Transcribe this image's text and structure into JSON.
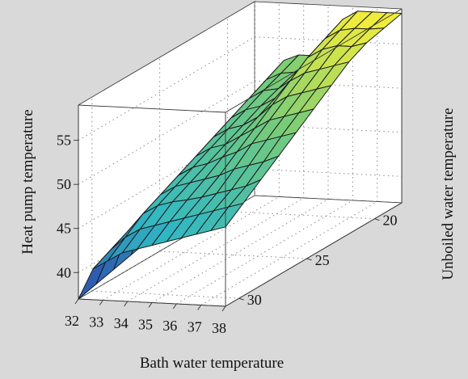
{
  "chart_data": {
    "type": "surface",
    "xlabel": "Bath water temperature",
    "ylabel": "Unboiled water temperature",
    "zlabel": "Heat pump temperature",
    "x_ticks": [
      "32",
      "33",
      "34",
      "35",
      "36",
      "37",
      "38"
    ],
    "y_ticks": [
      "20",
      "25",
      "30"
    ],
    "z_ticks": [
      "40",
      "45",
      "50",
      "55"
    ],
    "xlim": [
      32,
      38
    ],
    "ylim": [
      18,
      31
    ],
    "zlim": [
      37,
      59
    ],
    "grid": true,
    "colormap": "parula",
    "colors": {
      "panel_bg": "#d9d9d9",
      "low": "#2b3aa8",
      "mid": "#31b7c4",
      "high": "#f5ee3a"
    },
    "x": [
      32,
      32.6,
      33.2,
      33.8,
      34.4,
      35,
      35.6,
      36.2,
      36.8,
      37.4,
      38
    ],
    "y": [
      18,
      19.3,
      20.6,
      21.9,
      23.2,
      24.5,
      25.8,
      27.1,
      28.4,
      29.7,
      31
    ],
    "z": [
      [
        46,
        50.5,
        52.5,
        53.2,
        53.2,
        54.5,
        57.5,
        58.5,
        58.5,
        58.5,
        58.5
      ],
      [
        44.5,
        49.5,
        51.5,
        52.3,
        52.5,
        54,
        56.5,
        57.5,
        57.8,
        57.8,
        58
      ],
      [
        43,
        48.5,
        50.5,
        51.5,
        51.8,
        53,
        55.5,
        56.5,
        57,
        57,
        57.5
      ],
      [
        42,
        47.5,
        49.5,
        50.5,
        51,
        52,
        54,
        55,
        55.5,
        56,
        56.5
      ],
      [
        41,
        46.5,
        48.5,
        49.5,
        50,
        51,
        52.5,
        53.5,
        54,
        54.5,
        55
      ],
      [
        40,
        45.5,
        47.5,
        48.5,
        49,
        50,
        51,
        52,
        52.5,
        53,
        53.5
      ],
      [
        39,
        44.5,
        46.5,
        47.5,
        48,
        48.8,
        49.5,
        50.5,
        51,
        51.5,
        52
      ],
      [
        38.5,
        43.5,
        45.5,
        46.5,
        47,
        47.5,
        48,
        48.8,
        49.3,
        49.8,
        50.5
      ],
      [
        38,
        42.5,
        44.5,
        45.5,
        46,
        46.3,
        46.7,
        47.2,
        47.7,
        48.2,
        49
      ],
      [
        37.5,
        41.5,
        43,
        44,
        44.5,
        45,
        45.5,
        46,
        46.5,
        47,
        47.5
      ],
      [
        37,
        40.5,
        41.5,
        42.5,
        43,
        43.5,
        44,
        44.5,
        45,
        45.5,
        46
      ]
    ]
  }
}
